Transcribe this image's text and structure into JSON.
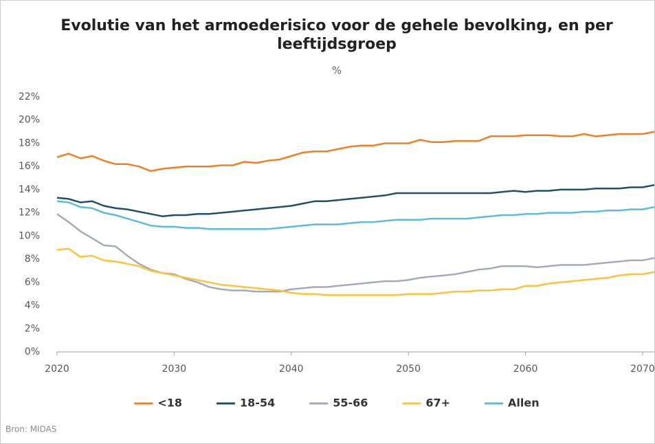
{
  "chart_data": {
    "type": "line",
    "title": "Evolutie van het armoederisico voor de gehele bevolking, en per leeftijdsgroep",
    "subtitle": "%",
    "source": "Bron: MIDAS",
    "x": [
      2020,
      2021,
      2022,
      2023,
      2024,
      2025,
      2026,
      2027,
      2028,
      2029,
      2030,
      2031,
      2032,
      2033,
      2034,
      2035,
      2036,
      2037,
      2038,
      2039,
      2040,
      2041,
      2042,
      2043,
      2044,
      2045,
      2046,
      2047,
      2048,
      2049,
      2050,
      2051,
      2052,
      2053,
      2054,
      2055,
      2056,
      2057,
      2058,
      2059,
      2060,
      2061,
      2062,
      2063,
      2064,
      2065,
      2066,
      2067,
      2068,
      2069,
      2070,
      2071
    ],
    "xlim": [
      2020,
      2071
    ],
    "xticks": [
      2020,
      2030,
      2040,
      2050,
      2060,
      2070
    ],
    "ylim": [
      0,
      22
    ],
    "yticks": [
      {
        "value": 0,
        "label": "0%"
      },
      {
        "value": 2,
        "label": "2%"
      },
      {
        "value": 4,
        "label": "4%"
      },
      {
        "value": 6,
        "label": "6%"
      },
      {
        "value": 8,
        "label": "8%"
      },
      {
        "value": 10,
        "label": "10%"
      },
      {
        "value": 12,
        "label": "12%"
      },
      {
        "value": 14,
        "label": "14%"
      },
      {
        "value": 16,
        "label": "16%"
      },
      {
        "value": 18,
        "label": "18%"
      },
      {
        "value": 20,
        "label": "20%"
      },
      {
        "value": 22,
        "label": "22%"
      }
    ],
    "grid": false,
    "legend": "bottom",
    "series": [
      {
        "name": "<18",
        "color": "#f07f22",
        "values": [
          16.8,
          17.1,
          16.7,
          16.9,
          16.5,
          16.2,
          16.2,
          16.0,
          15.6,
          15.8,
          15.9,
          16.0,
          16.0,
          16.0,
          16.1,
          16.1,
          16.4,
          16.3,
          16.5,
          16.6,
          16.9,
          17.2,
          17.3,
          17.3,
          17.5,
          17.7,
          17.8,
          17.8,
          18.0,
          18.0,
          18.0,
          18.3,
          18.1,
          18.1,
          18.2,
          18.2,
          18.2,
          18.6,
          18.6,
          18.6,
          18.7,
          18.7,
          18.7,
          18.6,
          18.6,
          18.8,
          18.6,
          18.7,
          18.8,
          18.8,
          18.8,
          19.0
        ]
      },
      {
        "name": "18-54",
        "color": "#1f5068",
        "values": [
          13.3,
          13.2,
          12.9,
          13.0,
          12.6,
          12.4,
          12.3,
          12.1,
          11.9,
          11.7,
          11.8,
          11.8,
          11.9,
          11.9,
          12.0,
          12.1,
          12.2,
          12.3,
          12.4,
          12.5,
          12.6,
          12.8,
          13.0,
          13.0,
          13.1,
          13.2,
          13.3,
          13.4,
          13.5,
          13.7,
          13.7,
          13.7,
          13.7,
          13.7,
          13.7,
          13.7,
          13.7,
          13.7,
          13.8,
          13.9,
          13.8,
          13.9,
          13.9,
          14.0,
          14.0,
          14.0,
          14.1,
          14.1,
          14.1,
          14.2,
          14.2,
          14.4
        ]
      },
      {
        "name": "55-66",
        "color": "#a6a9bb",
        "values": [
          11.9,
          11.2,
          10.4,
          9.8,
          9.2,
          9.1,
          8.3,
          7.6,
          7.1,
          6.8,
          6.7,
          6.3,
          6.0,
          5.6,
          5.4,
          5.3,
          5.3,
          5.2,
          5.2,
          5.2,
          5.4,
          5.5,
          5.6,
          5.6,
          5.7,
          5.8,
          5.9,
          6.0,
          6.1,
          6.1,
          6.2,
          6.4,
          6.5,
          6.6,
          6.7,
          6.9,
          7.1,
          7.2,
          7.4,
          7.4,
          7.4,
          7.3,
          7.4,
          7.5,
          7.5,
          7.5,
          7.6,
          7.7,
          7.8,
          7.9,
          7.9,
          8.1
        ]
      },
      {
        "name": "67+",
        "color": "#fdc33a",
        "values": [
          8.8,
          8.9,
          8.2,
          8.3,
          7.9,
          7.8,
          7.6,
          7.4,
          7.0,
          6.8,
          6.6,
          6.4,
          6.2,
          6.0,
          5.8,
          5.7,
          5.6,
          5.5,
          5.4,
          5.3,
          5.1,
          5.0,
          5.0,
          4.9,
          4.9,
          4.9,
          4.9,
          4.9,
          4.9,
          4.9,
          5.0,
          5.0,
          5.0,
          5.1,
          5.2,
          5.2,
          5.3,
          5.3,
          5.4,
          5.4,
          5.7,
          5.7,
          5.9,
          6.0,
          6.1,
          6.2,
          6.3,
          6.4,
          6.6,
          6.7,
          6.7,
          6.9
        ]
      },
      {
        "name": "Allen",
        "color": "#5bbcd6",
        "values": [
          13.0,
          12.9,
          12.5,
          12.4,
          12.0,
          11.8,
          11.5,
          11.2,
          10.9,
          10.8,
          10.8,
          10.7,
          10.7,
          10.6,
          10.6,
          10.6,
          10.6,
          10.6,
          10.6,
          10.7,
          10.8,
          10.9,
          11.0,
          11.0,
          11.0,
          11.1,
          11.2,
          11.2,
          11.3,
          11.4,
          11.4,
          11.4,
          11.5,
          11.5,
          11.5,
          11.5,
          11.6,
          11.7,
          11.8,
          11.8,
          11.9,
          11.9,
          12.0,
          12.0,
          12.0,
          12.1,
          12.1,
          12.2,
          12.2,
          12.3,
          12.3,
          12.5
        ]
      }
    ]
  }
}
